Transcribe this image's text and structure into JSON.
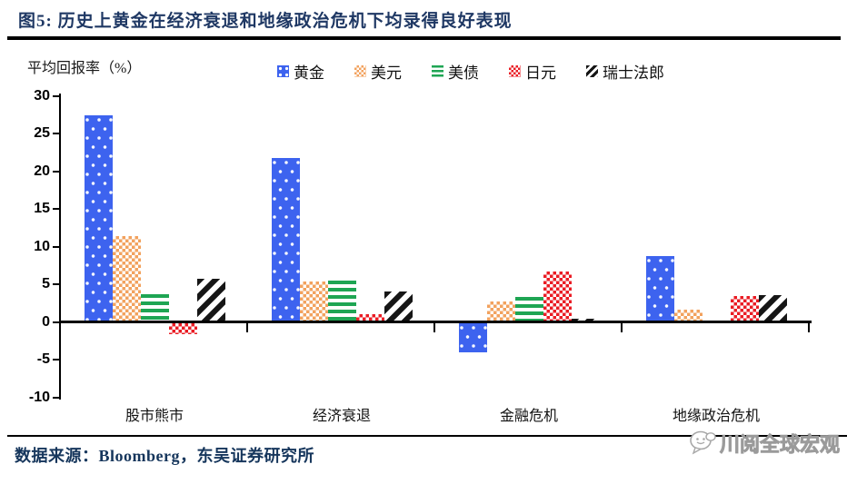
{
  "title": "图5:  历史上黄金在经济衰退和地缘政治危机下均录得良好表现",
  "ylabel": "平均回报率（%）",
  "source": "数据来源：Bloomberg，东吴证券研究所",
  "watermark": "川阅全球宏观",
  "chart_data": {
    "type": "bar",
    "title": "历史上黄金在经济衰退和地缘政治危机下均录得良好表现",
    "ylabel": "平均回报率（%）",
    "categories": [
      "股市熊市",
      "经济衰退",
      "金融危机",
      "地缘政治危机"
    ],
    "series": [
      {
        "name": "黄金",
        "color": "#3D63EF",
        "pattern": "dots",
        "values": [
          27.2,
          21.6,
          -3.9,
          8.6
        ]
      },
      {
        "name": "美元",
        "color": "#F2A25E",
        "pattern": "checker",
        "values": [
          11.2,
          5.2,
          2.5,
          1.4
        ]
      },
      {
        "name": "美债",
        "color": "#1EA553",
        "pattern": "hstripes",
        "values": [
          3.5,
          5.3,
          3.1,
          0
        ]
      },
      {
        "name": "日元",
        "color": "#EA1C24",
        "pattern": "checker",
        "values": [
          -1.5,
          0.9,
          6.5,
          3.2
        ]
      },
      {
        "name": "瑞士法郎",
        "color": "#161616",
        "pattern": "diagonal",
        "values": [
          5.5,
          3.9,
          0.3,
          3.4
        ]
      }
    ],
    "ylim": [
      -10,
      30
    ],
    "yticks": [
      30,
      25,
      20,
      15,
      10,
      5,
      0,
      -5,
      -10
    ],
    "legend_position": "top",
    "grid": false
  }
}
